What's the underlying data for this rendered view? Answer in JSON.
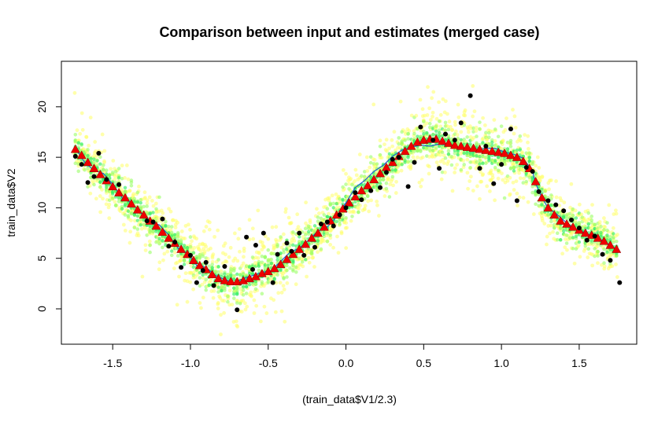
{
  "chart_data": {
    "type": "scatter",
    "title": "Comparison between input and estimates (merged case)",
    "xlabel": "(train_data$V1/2.3)",
    "ylabel": "train_data$V2",
    "xlim": [
      -1.83,
      1.87
    ],
    "ylim": [
      -3.5,
      24.5
    ],
    "x_ticks": [
      -1.5,
      -1.0,
      -0.5,
      0.0,
      0.5,
      1.0,
      1.5
    ],
    "x_tick_labels": [
      "-1.5",
      "-1.0",
      "-0.5",
      "0.0",
      "0.5",
      "1.0",
      "1.5"
    ],
    "y_ticks": [
      0,
      5,
      10,
      15,
      20
    ],
    "y_tick_labels": [
      "0",
      "5",
      "10",
      "15",
      "20"
    ],
    "grid": false,
    "colors": {
      "cloud_outer": "#ffff66",
      "cloud_mid": "#99ff66",
      "cloud_inner": "#33ee66",
      "input_points": "#000000",
      "estimate_markers": "#ee0000",
      "fit_line": "#1f5fd0"
    },
    "series": [
      {
        "type": "scatter",
        "marker": "circle",
        "color": "#000000",
        "x": [
          -1.74,
          -1.7,
          -1.66,
          -1.62,
          -1.59,
          -1.54,
          -1.46,
          -1.28,
          -1.24,
          -1.18,
          -1.14,
          -1.1,
          -1.06,
          -1.0,
          -0.96,
          -0.92,
          -0.9,
          -0.85,
          -0.78,
          -0.7,
          -0.64,
          -0.6,
          -0.58,
          -0.53,
          -0.47,
          -0.44,
          -0.38,
          -0.35,
          -0.3,
          -0.27,
          -0.2,
          -0.16,
          -0.12,
          -0.08,
          -0.04,
          0.0,
          0.06,
          0.1,
          0.16,
          0.22,
          0.26,
          0.3,
          0.34,
          0.4,
          0.44,
          0.48,
          0.56,
          0.6,
          0.64,
          0.7,
          0.74,
          0.8,
          0.86,
          0.9,
          0.95,
          1.0,
          1.06,
          1.1,
          1.16,
          1.2,
          1.24,
          1.3,
          1.35,
          1.4,
          1.45,
          1.5,
          1.55,
          1.6,
          1.65,
          1.7,
          1.76
        ],
        "y": [
          15.1,
          14.3,
          12.5,
          13.1,
          15.4,
          12.8,
          12.3,
          8.7,
          8.6,
          8.9,
          6.2,
          6.6,
          4.1,
          5.3,
          2.6,
          3.8,
          4.6,
          2.3,
          4.2,
          -0.1,
          7.1,
          3.9,
          6.3,
          7.5,
          2.6,
          5.4,
          6.5,
          5.7,
          7.5,
          5.3,
          6.1,
          8.4,
          8.6,
          8.2,
          9.3,
          10.0,
          11.5,
          10.8,
          11.7,
          12.0,
          13.5,
          14.8,
          15.0,
          12.1,
          14.5,
          18.0,
          16.7,
          13.9,
          17.3,
          16.7,
          18.4,
          21.1,
          13.9,
          16.1,
          12.4,
          14.3,
          17.8,
          10.7,
          14.0,
          13.6,
          11.6,
          10.7,
          10.3,
          9.7,
          8.8,
          8.0,
          6.8,
          7.2,
          5.4,
          4.8,
          2.6
        ]
      },
      {
        "type": "scatter",
        "marker": "triangle",
        "color": "#ee0000",
        "x": [
          -1.74,
          -1.7,
          -1.66,
          -1.62,
          -1.58,
          -1.54,
          -1.5,
          -1.46,
          -1.42,
          -1.38,
          -1.34,
          -1.3,
          -1.26,
          -1.22,
          -1.18,
          -1.14,
          -1.1,
          -1.06,
          -1.02,
          -0.98,
          -0.94,
          -0.9,
          -0.86,
          -0.82,
          -0.78,
          -0.74,
          -0.7,
          -0.66,
          -0.62,
          -0.58,
          -0.54,
          -0.5,
          -0.46,
          -0.42,
          -0.38,
          -0.34,
          -0.3,
          -0.26,
          -0.22,
          -0.18,
          -0.14,
          -0.1,
          -0.06,
          -0.02,
          0.02,
          0.06,
          0.1,
          0.14,
          0.18,
          0.22,
          0.26,
          0.3,
          0.34,
          0.38,
          0.42,
          0.46,
          0.5,
          0.54,
          0.58,
          0.62,
          0.66,
          0.7,
          0.74,
          0.78,
          0.82,
          0.86,
          0.9,
          0.94,
          0.98,
          1.02,
          1.06,
          1.1,
          1.14,
          1.18,
          1.22,
          1.26,
          1.3,
          1.34,
          1.38,
          1.42,
          1.46,
          1.5,
          1.54,
          1.58,
          1.62,
          1.66,
          1.7,
          1.74
        ],
        "y": [
          15.8,
          15.2,
          14.5,
          13.9,
          13.3,
          12.7,
          12.1,
          11.5,
          11.0,
          10.4,
          9.8,
          9.3,
          8.7,
          8.2,
          7.6,
          7.0,
          6.5,
          5.9,
          5.4,
          4.8,
          4.3,
          3.9,
          3.4,
          3.0,
          2.8,
          2.7,
          2.7,
          2.8,
          3.0,
          3.2,
          3.5,
          3.7,
          4.0,
          4.4,
          4.9,
          5.4,
          5.9,
          6.4,
          7.0,
          7.5,
          8.1,
          8.7,
          9.3,
          9.9,
          10.5,
          11.1,
          11.7,
          12.2,
          12.8,
          13.4,
          14.0,
          14.5,
          15.1,
          15.6,
          16.1,
          16.5,
          16.7,
          16.8,
          16.8,
          16.6,
          16.4,
          16.2,
          16.1,
          16.0,
          15.9,
          15.8,
          15.7,
          15.6,
          15.5,
          15.4,
          15.2,
          15.0,
          14.6,
          13.9,
          12.6,
          11.0,
          10.0,
          9.3,
          8.7,
          8.4,
          8.1,
          7.8,
          7.5,
          7.3,
          7.0,
          6.7,
          6.3,
          5.9
        ]
      },
      {
        "type": "line",
        "color": "#1f5fd0",
        "x": [
          -1.74,
          -1.68,
          -1.62,
          -1.56,
          -1.5,
          -1.44,
          -1.38,
          -1.32,
          -1.26,
          -1.2,
          -1.14,
          -1.08,
          -1.02,
          -0.96,
          -0.9,
          -0.84,
          -0.78,
          -0.72,
          -0.66,
          -0.6,
          -0.54,
          -0.48,
          -0.42,
          -0.36,
          -0.3,
          -0.24,
          -0.18,
          -0.12,
          -0.06,
          0.0,
          0.06,
          0.12,
          0.18,
          0.24,
          0.3,
          0.36,
          0.42,
          0.48,
          0.54,
          0.6,
          0.66,
          0.72,
          0.78,
          0.84,
          0.9,
          0.96,
          1.02,
          1.08,
          1.14,
          1.2,
          1.22,
          1.26,
          1.3,
          1.36,
          1.42,
          1.48,
          1.54,
          1.6,
          1.66,
          1.74
        ],
        "y": [
          15.9,
          14.5,
          13.7,
          13.4,
          12.3,
          11.0,
          10.5,
          9.5,
          8.6,
          8.3,
          7.3,
          6.0,
          5.5,
          4.3,
          4.1,
          3.3,
          2.9,
          2.6,
          3.0,
          3.3,
          3.6,
          3.8,
          4.7,
          5.6,
          6.0,
          6.8,
          7.7,
          8.1,
          9.1,
          10.5,
          12.0,
          12.7,
          13.6,
          14.2,
          15.1,
          15.7,
          16.0,
          16.2,
          16.1,
          16.3,
          16.2,
          16.0,
          15.8,
          15.7,
          15.9,
          15.9,
          15.5,
          15.3,
          14.9,
          13.6,
          12.4,
          11.0,
          10.0,
          9.3,
          8.5,
          7.9,
          7.5,
          7.1,
          6.7,
          5.9
        ]
      }
    ]
  }
}
